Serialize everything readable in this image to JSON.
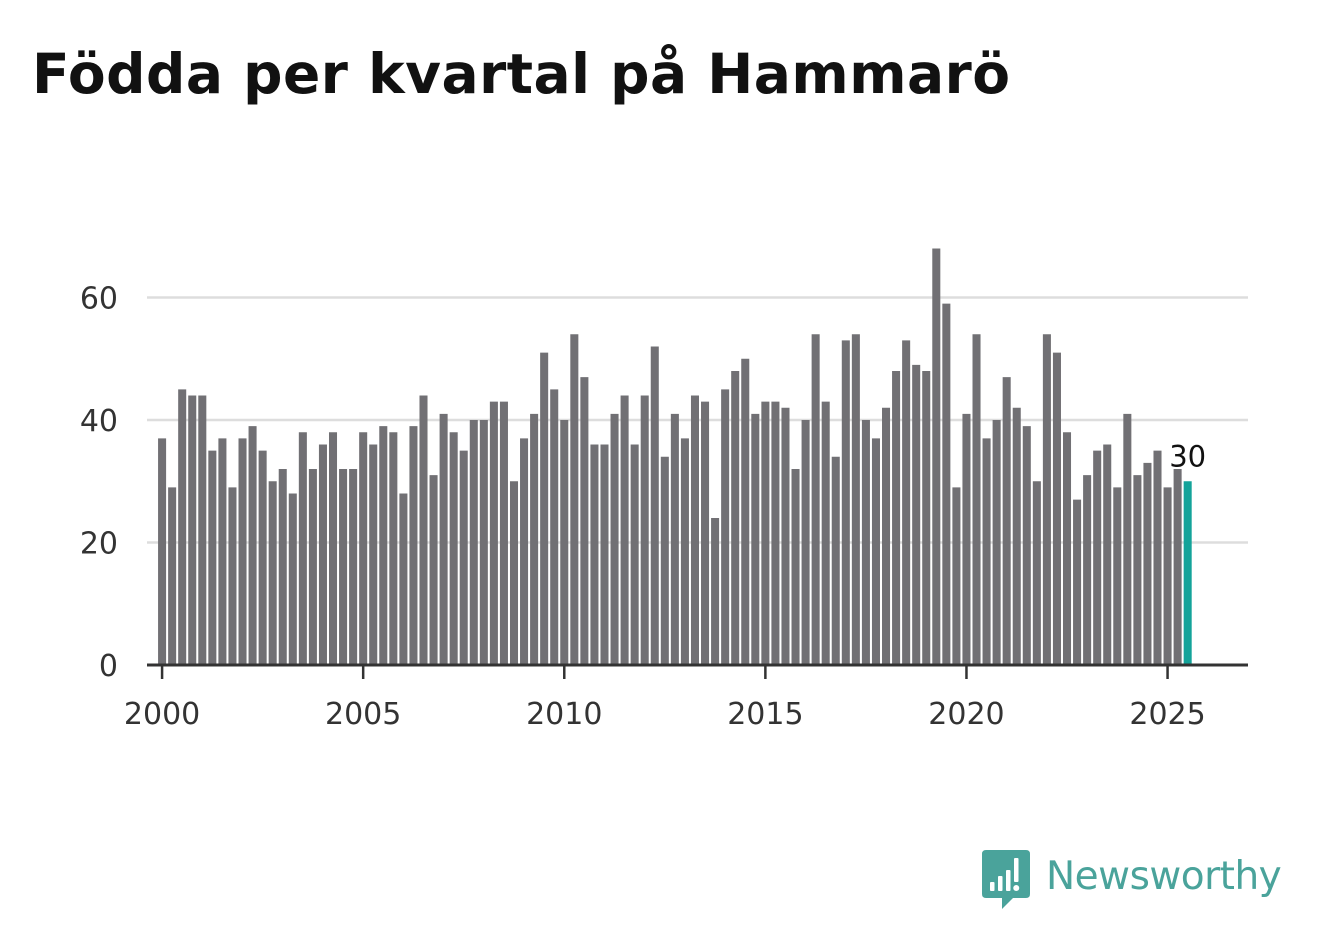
{
  "page": {
    "title": "Födda per kvartal på Hammarö",
    "brand": "Newsworthy"
  },
  "colors": {
    "bar": "#717074",
    "highlight": "#14a39a",
    "grid": "#dddddd",
    "axis": "#333333",
    "brand": "#4aa39b"
  },
  "chart_data": {
    "type": "bar",
    "title": "Födda per kvartal på Hammarö",
    "xlabel": "",
    "ylabel": "",
    "x_start_year": 2000,
    "x_ticks": [
      2000,
      2005,
      2010,
      2015,
      2020,
      2025
    ],
    "y_ticks": [
      0,
      20,
      40,
      60
    ],
    "ylim": [
      0,
      70
    ],
    "xlim": [
      1999.625,
      2027.0
    ],
    "grid": true,
    "legend": "none",
    "values": [
      37,
      29,
      45,
      44,
      44,
      35,
      37,
      29,
      37,
      39,
      35,
      30,
      32,
      28,
      38,
      32,
      36,
      38,
      32,
      32,
      38,
      36,
      39,
      38,
      28,
      39,
      44,
      31,
      41,
      38,
      35,
      40,
      40,
      43,
      43,
      30,
      37,
      41,
      51,
      45,
      40,
      54,
      47,
      36,
      36,
      41,
      44,
      36,
      44,
      52,
      34,
      41,
      37,
      44,
      43,
      24,
      45,
      48,
      50,
      41,
      43,
      43,
      42,
      32,
      40,
      54,
      43,
      34,
      53,
      54,
      40,
      37,
      42,
      48,
      53,
      49,
      48,
      68,
      59,
      29,
      41,
      54,
      37,
      40,
      47,
      42,
      39,
      30,
      54,
      51,
      38,
      27,
      31,
      35,
      36,
      29,
      41,
      31,
      33,
      35,
      29,
      32,
      30
    ],
    "highlight_index": 102,
    "annotation": {
      "index": 102,
      "label": "30"
    }
  }
}
